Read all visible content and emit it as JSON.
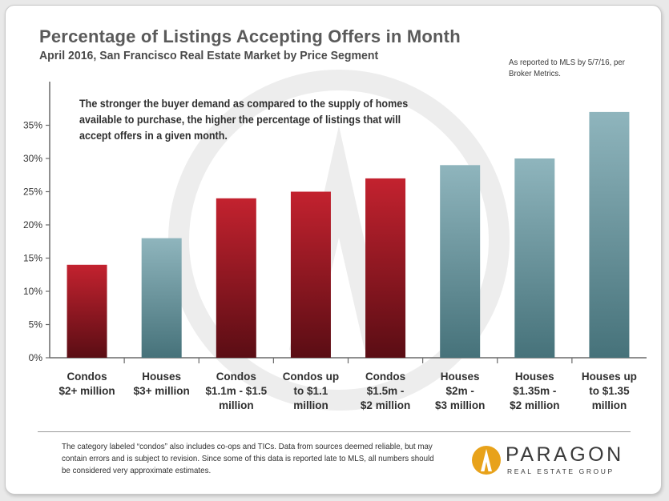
{
  "header": {
    "title": "Percentage of Listings Accepting Offers in Month",
    "subtitle": "April 2016, San Francisco Real Estate Market by Price Segment",
    "source_note": "As reported to MLS by 5/7/16, per Broker Metrics."
  },
  "annotation": "The stronger the buyer demand as compared to the supply of homes available to purchase, the higher the percentage of listings that will accept offers in a given month.",
  "footer": {
    "disclaimer": "The category labeled “condos” also includes co-ops and TICs. Data from sources deemed reliable, but may contain errors and is subject to revision. Since some of this data is reported late to MLS, all numbers should be considered very approximate estimates."
  },
  "logo": {
    "name": "PARAGON",
    "tagline": "REAL ESTATE GROUP"
  },
  "colors": {
    "condo_top": "#c3222f",
    "condo_bottom": "#5a0d14",
    "house_top": "#8fb5bd",
    "house_bottom": "#46727a",
    "axis": "#6a6a6a",
    "watermark": "#ededed",
    "logo_gold": "#e8a21a"
  },
  "chart_data": {
    "type": "bar",
    "categories": [
      [
        "Condos",
        "$2+ million"
      ],
      [
        "Houses",
        "$3+ million"
      ],
      [
        "Condos",
        "$1.1m - $1.5",
        "million"
      ],
      [
        "Condos up",
        "to $1.1",
        "million"
      ],
      [
        "Condos",
        "$1.5m -",
        "$2 million"
      ],
      [
        "Houses",
        "$2m -",
        "$3 million"
      ],
      [
        "Houses",
        "$1.35m -",
        "$2 million"
      ],
      [
        "Houses up",
        "to $1.35",
        "million"
      ]
    ],
    "values": [
      14,
      18,
      24,
      25,
      27,
      29,
      30,
      37
    ],
    "segment": [
      "condo",
      "house",
      "condo",
      "condo",
      "condo",
      "house",
      "house",
      "house"
    ],
    "yticks": [
      0,
      5,
      10,
      15,
      20,
      25,
      30,
      35
    ],
    "ytick_labels": [
      "0%",
      "5%",
      "10%",
      "15%",
      "20%",
      "25%",
      "30%",
      "35%"
    ],
    "ylim": [
      0,
      40
    ],
    "title": "Percentage of Listings Accepting Offers in Month",
    "xlabel": "",
    "ylabel": "",
    "grid": false
  }
}
